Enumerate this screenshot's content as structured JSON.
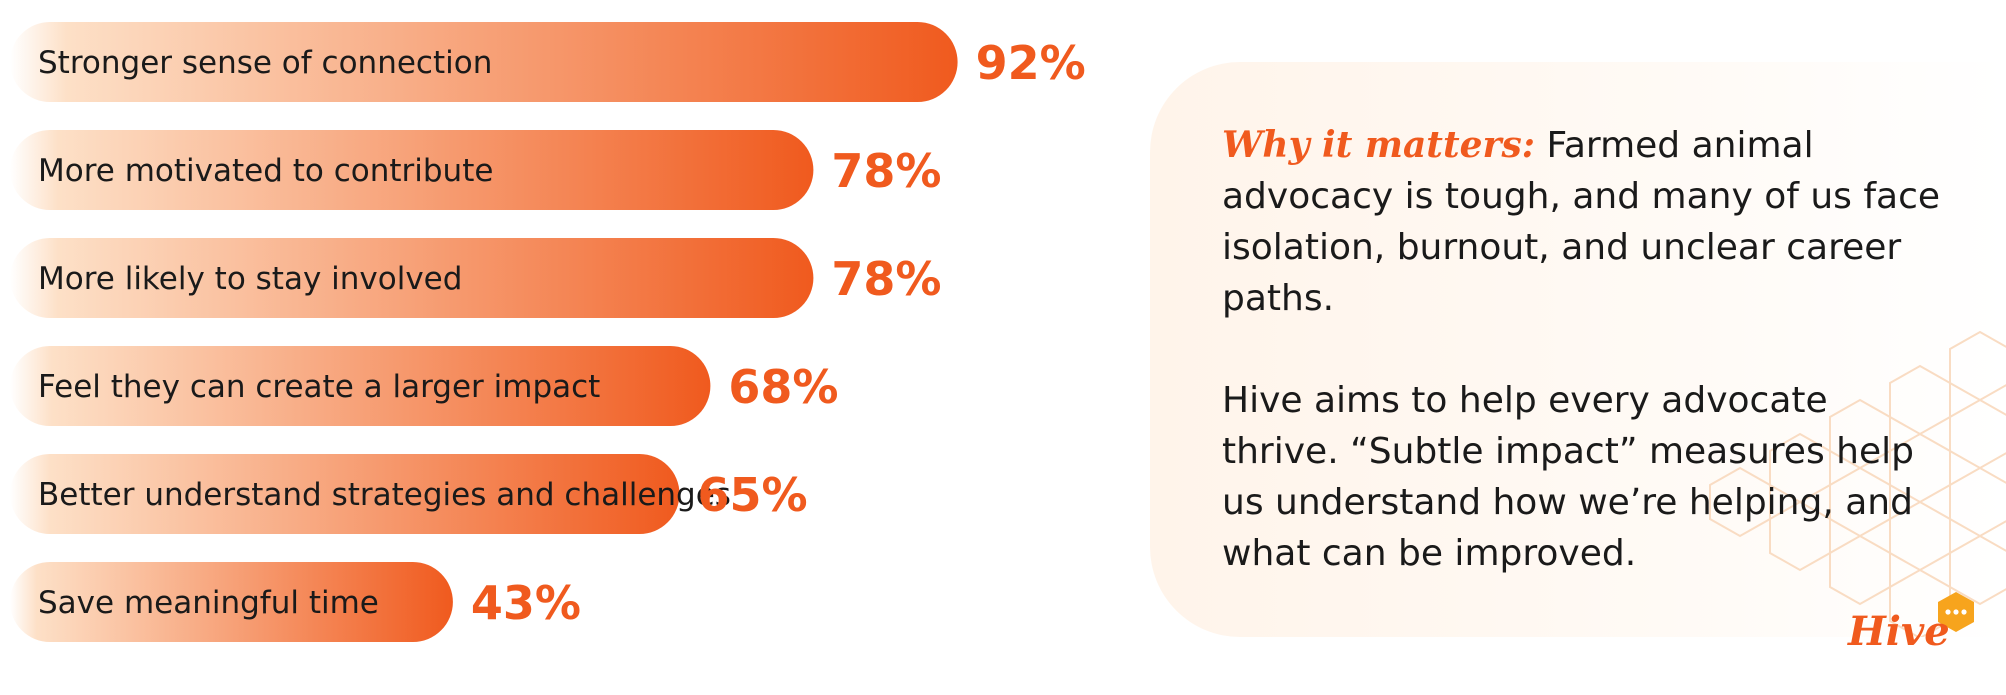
{
  "chart_data": {
    "type": "bar",
    "orientation": "horizontal",
    "categories": [
      "Stronger sense of connection",
      "More motivated to contribute",
      "More likely to stay involved",
      "Feel they can create a larger impact",
      "Better understand strategies and challenges",
      "Save meaningful time"
    ],
    "values": [
      92,
      78,
      78,
      68,
      65,
      43
    ],
    "value_labels": [
      "92%",
      "78%",
      "78%",
      "68%",
      "65%",
      "43%"
    ],
    "unit": "%",
    "colors": {
      "bar_start": "#fde0c7",
      "bar_end": "#f05a1e",
      "label": "#f05a1e"
    },
    "grid": false
  },
  "panel": {
    "lead": "Why it matters:",
    "paragraph1": "Farmed animal advocacy is tough, and many of us face isolation, burnout, and unclear career paths.",
    "paragraph2": "Hive aims to help every advocate thrive. “Subtle impact” measures help us understand how we’re helping, and what can be improved."
  },
  "logo": {
    "text": "Hive"
  }
}
